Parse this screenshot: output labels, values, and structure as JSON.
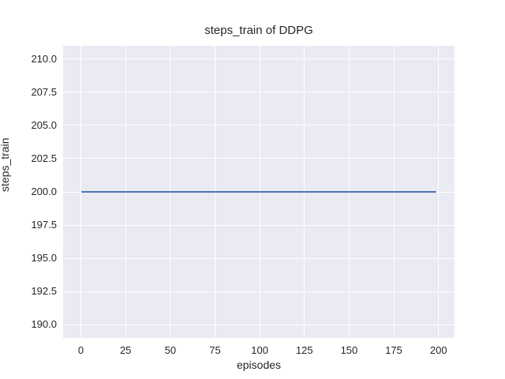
{
  "chart_data": {
    "type": "line",
    "title": "steps_train of DDPG",
    "xlabel": "episodes",
    "ylabel": "steps_train",
    "xlim": [
      -9.95,
      208.95
    ],
    "ylim": [
      189.0,
      211.0
    ],
    "x_ticks": [
      0,
      25,
      50,
      75,
      100,
      125,
      150,
      175,
      200
    ],
    "x_tick_labels": [
      "0",
      "25",
      "50",
      "75",
      "100",
      "125",
      "150",
      "175",
      "200"
    ],
    "y_ticks": [
      190.0,
      192.5,
      195.0,
      197.5,
      200.0,
      202.5,
      205.0,
      207.5,
      210.0
    ],
    "y_tick_labels": [
      "190.0",
      "192.5",
      "195.0",
      "197.5",
      "200.0",
      "202.5",
      "205.0",
      "207.5",
      "210.0"
    ],
    "grid": true,
    "legend": "none",
    "series": [
      {
        "name": "steps_train",
        "x": [
          0,
          199
        ],
        "y": [
          200,
          200
        ],
        "constant_value": 200,
        "note": "flat line, steps_train equals 200 for every episode from 0 to 199"
      }
    ],
    "colors": {
      "line": "#4c72b0",
      "axes_background": "#eaeaf2",
      "gridline": "#ffffff",
      "text": "#262626",
      "figure_background": "#ffffff"
    }
  }
}
